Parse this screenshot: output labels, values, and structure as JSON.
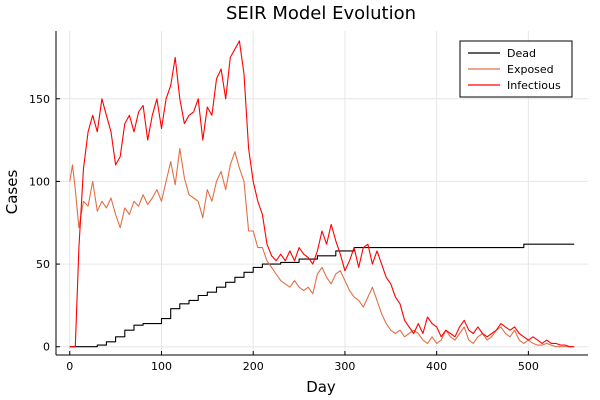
{
  "chart_data": {
    "type": "line",
    "title": "SEIR Model Evolution",
    "xlabel": "Day",
    "ylabel": "Cases",
    "xlim": [
      -15,
      565
    ],
    "ylim": [
      -5,
      191
    ],
    "xticks": [
      0,
      100,
      200,
      300,
      400,
      500
    ],
    "yticks": [
      0,
      50,
      100,
      150
    ],
    "grid": true,
    "legend_position": "top-right",
    "series": [
      {
        "name": "Dead",
        "color": "#000000",
        "step": true,
        "x": [
          0,
          20,
          30,
          40,
          50,
          60,
          70,
          80,
          90,
          100,
          110,
          120,
          130,
          140,
          150,
          160,
          170,
          180,
          190,
          200,
          210,
          230,
          250,
          270,
          290,
          310,
          330,
          360,
          400,
          450,
          495,
          520,
          550
        ],
        "y": [
          0,
          0,
          1,
          3,
          6,
          10,
          13,
          14,
          14,
          17,
          23,
          26,
          28,
          31,
          33,
          36,
          39,
          42,
          45,
          48,
          50,
          51,
          53,
          55,
          58,
          60,
          60,
          60,
          60,
          60,
          62,
          62,
          62
        ]
      },
      {
        "name": "Exposed",
        "color": "#e26f46",
        "step": false,
        "x": [
          0,
          3,
          6,
          10,
          15,
          20,
          25,
          30,
          35,
          40,
          45,
          50,
          55,
          60,
          65,
          70,
          75,
          80,
          85,
          90,
          95,
          100,
          105,
          110,
          115,
          120,
          125,
          130,
          135,
          140,
          145,
          150,
          155,
          160,
          165,
          170,
          175,
          180,
          185,
          190,
          195,
          200,
          205,
          210,
          215,
          220,
          225,
          230,
          235,
          240,
          245,
          250,
          255,
          260,
          265,
          270,
          275,
          280,
          285,
          290,
          295,
          300,
          305,
          310,
          315,
          320,
          325,
          330,
          335,
          340,
          345,
          350,
          355,
          360,
          365,
          370,
          375,
          380,
          385,
          390,
          395,
          400,
          405,
          410,
          415,
          420,
          425,
          430,
          435,
          440,
          445,
          450,
          455,
          460,
          465,
          470,
          475,
          480,
          485,
          490,
          495,
          500,
          505,
          510,
          515,
          520,
          525,
          530,
          535,
          540,
          545,
          550
        ],
        "y": [
          100,
          110,
          95,
          72,
          88,
          85,
          100,
          82,
          88,
          84,
          90,
          80,
          72,
          84,
          80,
          88,
          85,
          92,
          86,
          90,
          95,
          88,
          100,
          112,
          98,
          120,
          102,
          92,
          90,
          88,
          78,
          95,
          88,
          100,
          106,
          95,
          110,
          118,
          108,
          100,
          70,
          70,
          60,
          60,
          52,
          48,
          44,
          40,
          38,
          36,
          40,
          36,
          34,
          36,
          32,
          44,
          48,
          42,
          38,
          44,
          46,
          40,
          34,
          30,
          28,
          24,
          30,
          36,
          28,
          20,
          14,
          10,
          8,
          10,
          6,
          8,
          10,
          8,
          4,
          2,
          6,
          2,
          4,
          10,
          6,
          4,
          8,
          12,
          4,
          2,
          6,
          8,
          4,
          6,
          10,
          12,
          8,
          6,
          10,
          4,
          2,
          4,
          2,
          1,
          1,
          2,
          1,
          0,
          0,
          0,
          0,
          0
        ]
      },
      {
        "name": "Infectious",
        "color": "#ff0000",
        "step": false,
        "x": [
          0,
          3,
          6,
          10,
          15,
          20,
          25,
          30,
          35,
          40,
          45,
          50,
          55,
          60,
          65,
          70,
          75,
          80,
          85,
          90,
          95,
          100,
          105,
          110,
          115,
          120,
          125,
          130,
          135,
          140,
          145,
          150,
          155,
          160,
          165,
          170,
          175,
          180,
          185,
          190,
          195,
          200,
          205,
          210,
          215,
          220,
          225,
          230,
          235,
          240,
          245,
          250,
          255,
          260,
          265,
          270,
          275,
          280,
          285,
          290,
          295,
          300,
          305,
          310,
          315,
          320,
          325,
          330,
          335,
          340,
          345,
          350,
          355,
          360,
          365,
          370,
          375,
          380,
          385,
          390,
          395,
          400,
          405,
          410,
          415,
          420,
          425,
          430,
          435,
          440,
          445,
          450,
          455,
          460,
          465,
          470,
          475,
          480,
          485,
          490,
          495,
          500,
          505,
          510,
          515,
          520,
          525,
          530,
          535,
          540,
          545,
          550
        ],
        "y": [
          0,
          0,
          0,
          60,
          108,
          130,
          140,
          130,
          150,
          140,
          130,
          110,
          115,
          135,
          140,
          130,
          142,
          146,
          125,
          140,
          150,
          132,
          150,
          158,
          175,
          150,
          135,
          140,
          142,
          150,
          125,
          145,
          140,
          162,
          168,
          150,
          175,
          180,
          185,
          165,
          120,
          100,
          88,
          80,
          62,
          55,
          52,
          56,
          52,
          58,
          52,
          60,
          56,
          54,
          50,
          58,
          70,
          62,
          74,
          64,
          56,
          46,
          52,
          60,
          48,
          60,
          62,
          50,
          58,
          50,
          42,
          38,
          30,
          26,
          16,
          12,
          8,
          14,
          8,
          18,
          14,
          12,
          6,
          10,
          8,
          6,
          12,
          16,
          10,
          8,
          12,
          8,
          6,
          8,
          10,
          14,
          12,
          10,
          12,
          8,
          6,
          4,
          6,
          4,
          2,
          4,
          2,
          2,
          1,
          1,
          0,
          0
        ]
      }
    ]
  }
}
